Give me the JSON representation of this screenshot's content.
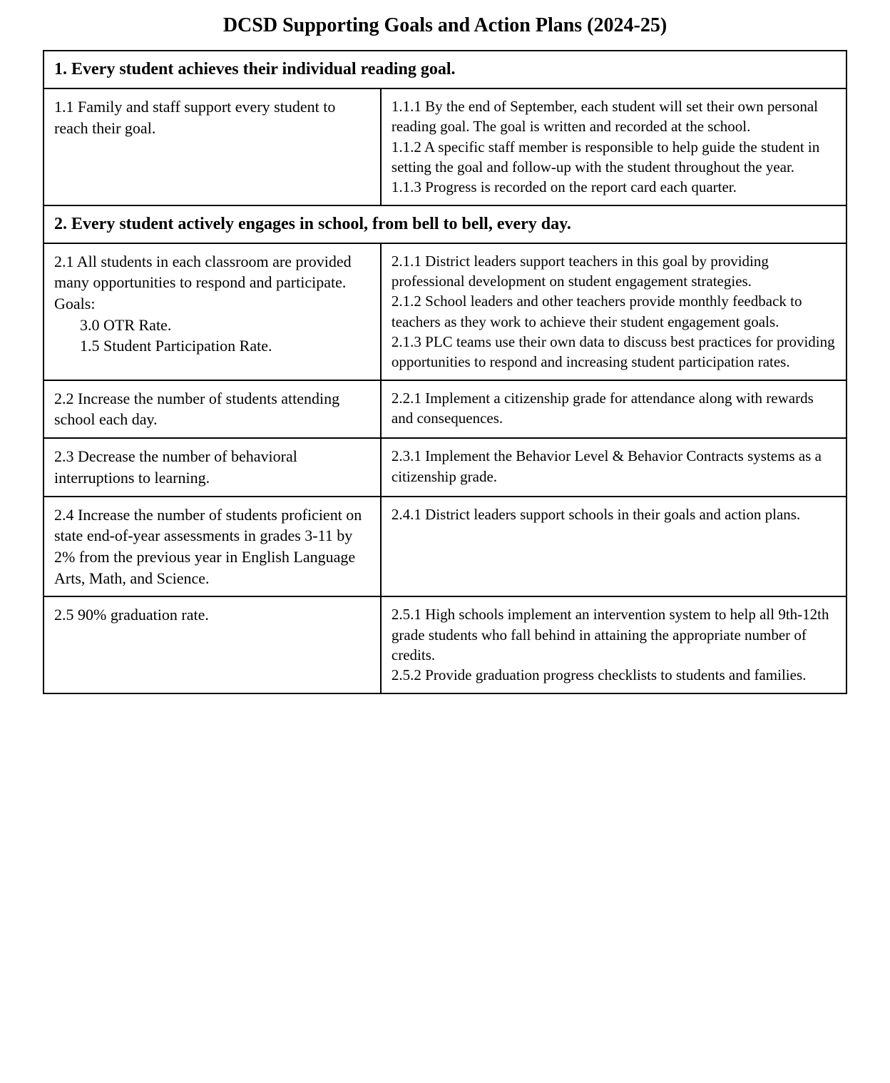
{
  "title": "DCSD Supporting Goals and Action Plans (2024-25)",
  "sections": [
    {
      "heading": "1.  Every student achieves their individual reading goal.",
      "rows": [
        {
          "goal_lines": [
            "1.1  Family and staff support every student to reach their goal."
          ],
          "action_lines": [
            "1.1.1  By the end of September, each student will set their own personal reading goal. The goal is written and recorded at the school.",
            "1.1.2  A specific staff member is responsible to help guide the student in setting the goal and follow-up with the student throughout the year.",
            "1.1.3  Progress is recorded on the report card each quarter."
          ]
        }
      ]
    },
    {
      "heading": "2. Every student actively engages in school, from bell to bell, every day.",
      "rows": [
        {
          "goal_lines": [
            "2.1  All students in each classroom are provided many opportunities to respond and participate. Goals:"
          ],
          "goal_sub_lines": [
            "3.0 OTR Rate.",
            "1.5 Student Participation Rate."
          ],
          "action_lines": [
            "2.1.1  District leaders support teachers in this goal by providing professional development on student engagement strategies.",
            "2.1.2  School leaders and other teachers provide monthly feedback to teachers as they work to achieve their student engagement goals.",
            "2.1.3  PLC teams use their own data to discuss best practices for providing opportunities to respond and increasing student participation rates."
          ]
        },
        {
          "goal_lines": [
            "2.2  Increase the number of students attending school each day."
          ],
          "action_lines": [
            "2.2.1  Implement a citizenship grade for attendance along with rewards and consequences."
          ]
        },
        {
          "goal_lines": [
            "2.3  Decrease the number of behavioral interruptions to learning."
          ],
          "action_lines": [
            "2.3.1  Implement the Behavior Level & Behavior Contracts systems as a citizenship grade."
          ]
        },
        {
          "goal_lines": [
            "2.4  Increase the number of students proficient on state end-of-year assessments in grades 3-11 by 2% from the previous year in English Language Arts, Math, and Science."
          ],
          "action_lines": [
            "2.4.1  District leaders support schools in their goals and action plans."
          ]
        },
        {
          "goal_lines": [
            "2.5  90% graduation rate."
          ],
          "action_lines": [
            "2.5.1  High schools implement an intervention system to help all 9th-12th grade students who fall behind in attaining the appropriate number of credits.",
            "2.5.2  Provide graduation progress checklists to students and families."
          ]
        }
      ]
    }
  ]
}
